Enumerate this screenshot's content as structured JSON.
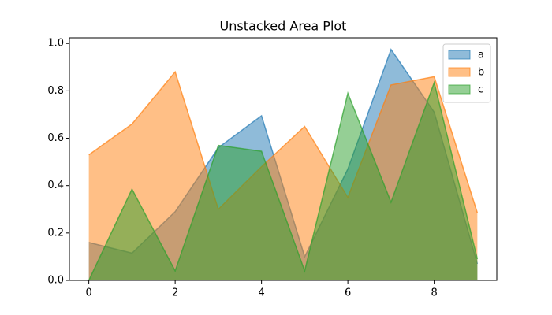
{
  "chart_data": {
    "type": "area",
    "title": "Unstacked Area Plot",
    "x": [
      0,
      1,
      2,
      3,
      4,
      5,
      6,
      7,
      8,
      9
    ],
    "series": [
      {
        "name": "a",
        "color": "#1f77b4",
        "values": [
          0.16,
          0.115,
          0.29,
          0.56,
          0.695,
          0.1,
          0.47,
          0.975,
          0.71,
          0.07
        ]
      },
      {
        "name": "b",
        "color": "#ff7f0e",
        "values": [
          0.53,
          0.66,
          0.88,
          0.3,
          0.48,
          0.65,
          0.35,
          0.825,
          0.86,
          0.285
        ]
      },
      {
        "name": "c",
        "color": "#2ca02c",
        "values": [
          0.0,
          0.385,
          0.04,
          0.57,
          0.545,
          0.04,
          0.79,
          0.33,
          0.835,
          0.09
        ]
      }
    ],
    "xlim": [
      -0.45,
      9.45
    ],
    "xticks": [
      0,
      2,
      4,
      6,
      8
    ],
    "ylim": [
      0,
      1.024
    ],
    "yticks": [
      {
        "value": 0,
        "label": "0.0"
      },
      {
        "value": 0.2,
        "label": "0.2"
      },
      {
        "value": 0.4,
        "label": "0.4"
      },
      {
        "value": 0.6,
        "label": "0.6"
      },
      {
        "value": 0.8,
        "label": "0.8"
      },
      {
        "value": 1.0,
        "label": "1.0"
      }
    ],
    "legend": "upper right",
    "alpha": 0.5
  }
}
